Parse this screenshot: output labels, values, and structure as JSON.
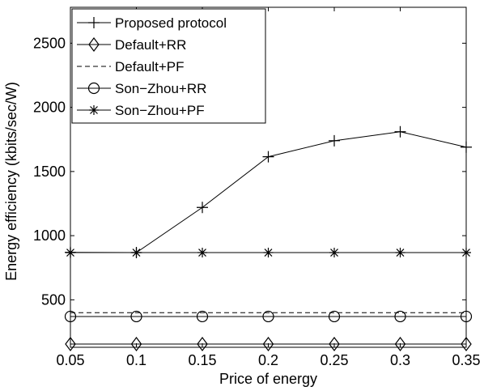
{
  "chart_data": {
    "type": "line",
    "title": "",
    "xlabel": "Price of energy",
    "ylabel": "Energy efficiency (kbits/sec/W)",
    "xlim": [
      0.05,
      0.35
    ],
    "ylim": [
      130,
      2780
    ],
    "x": [
      0.05,
      0.1,
      0.15,
      0.2,
      0.25,
      0.3,
      0.35
    ],
    "x_ticks": [
      0.05,
      0.1,
      0.15,
      0.2,
      0.25,
      0.3,
      0.35
    ],
    "x_tick_labels": [
      "0.05",
      "0.1",
      "0.15",
      "0.2",
      "0.25",
      "0.3",
      "0.35"
    ],
    "y_ticks": [
      500,
      1000,
      1500,
      2000,
      2500
    ],
    "y_tick_labels": [
      "500",
      "1000",
      "1500",
      "2000",
      "2500"
    ],
    "grid": false,
    "legend_position": "top-left",
    "series": [
      {
        "name": "Proposed protocol",
        "marker": "plus",
        "dash": "solid",
        "color": "#000000",
        "values": [
          870,
          868,
          1220,
          1615,
          1740,
          1810,
          1690
        ]
      },
      {
        "name": "Default+RR",
        "marker": "diamond",
        "dash": "solid",
        "color": "#000000",
        "values": [
          155,
          155,
          155,
          155,
          155,
          155,
          155
        ]
      },
      {
        "name": "Default+PF",
        "marker": "none",
        "dash": "dashed",
        "color": "#000000",
        "values": [
          400,
          400,
          400,
          400,
          400,
          400,
          400
        ]
      },
      {
        "name": "Son−Zhou+RR",
        "marker": "circle",
        "dash": "solid",
        "color": "#000000",
        "values": [
          370,
          370,
          370,
          370,
          370,
          370,
          370
        ]
      },
      {
        "name": "Son−Zhou+PF",
        "marker": "star",
        "dash": "solid",
        "color": "#000000",
        "values": [
          868,
          868,
          868,
          868,
          868,
          868,
          868
        ]
      }
    ]
  }
}
